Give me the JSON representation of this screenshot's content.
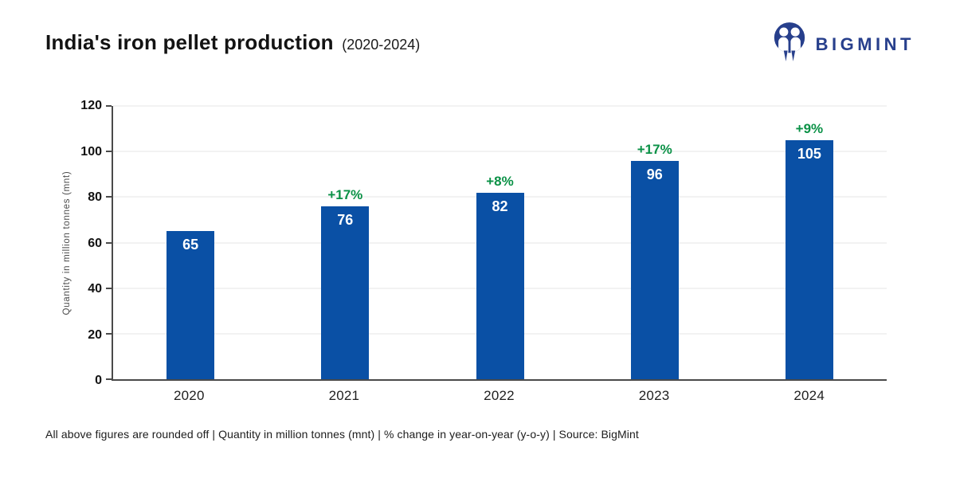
{
  "header": {
    "title": "India's iron pellet production",
    "subtitle": "(2020-2024)",
    "logo_text": "BIGMINT"
  },
  "chart_data": {
    "type": "bar",
    "title": "India's iron pellet production (2020-2024)",
    "categories": [
      "2020",
      "2021",
      "2022",
      "2023",
      "2024"
    ],
    "values": [
      65,
      76,
      82,
      96,
      105
    ],
    "pct_change": [
      null,
      "+17%",
      "+8%",
      "+17%",
      "+9%"
    ],
    "xlabel": "",
    "ylabel": "Quantity in million tonnes (mnt)",
    "ylim": [
      0,
      120
    ],
    "yticks": [
      0,
      20,
      40,
      60,
      80,
      100,
      120
    ],
    "grid": true,
    "legend": "none",
    "bar_color": "#0A50A5",
    "pct_label_color": "#0A9146",
    "value_label_color": "#ffffff",
    "logo_color": "#273F8C"
  },
  "footer": {
    "note": "All above figures are rounded off  |  Quantity in million tonnes (mnt)  |  % change in year-on-year (y-o-y)  |  Source: BigMint"
  }
}
